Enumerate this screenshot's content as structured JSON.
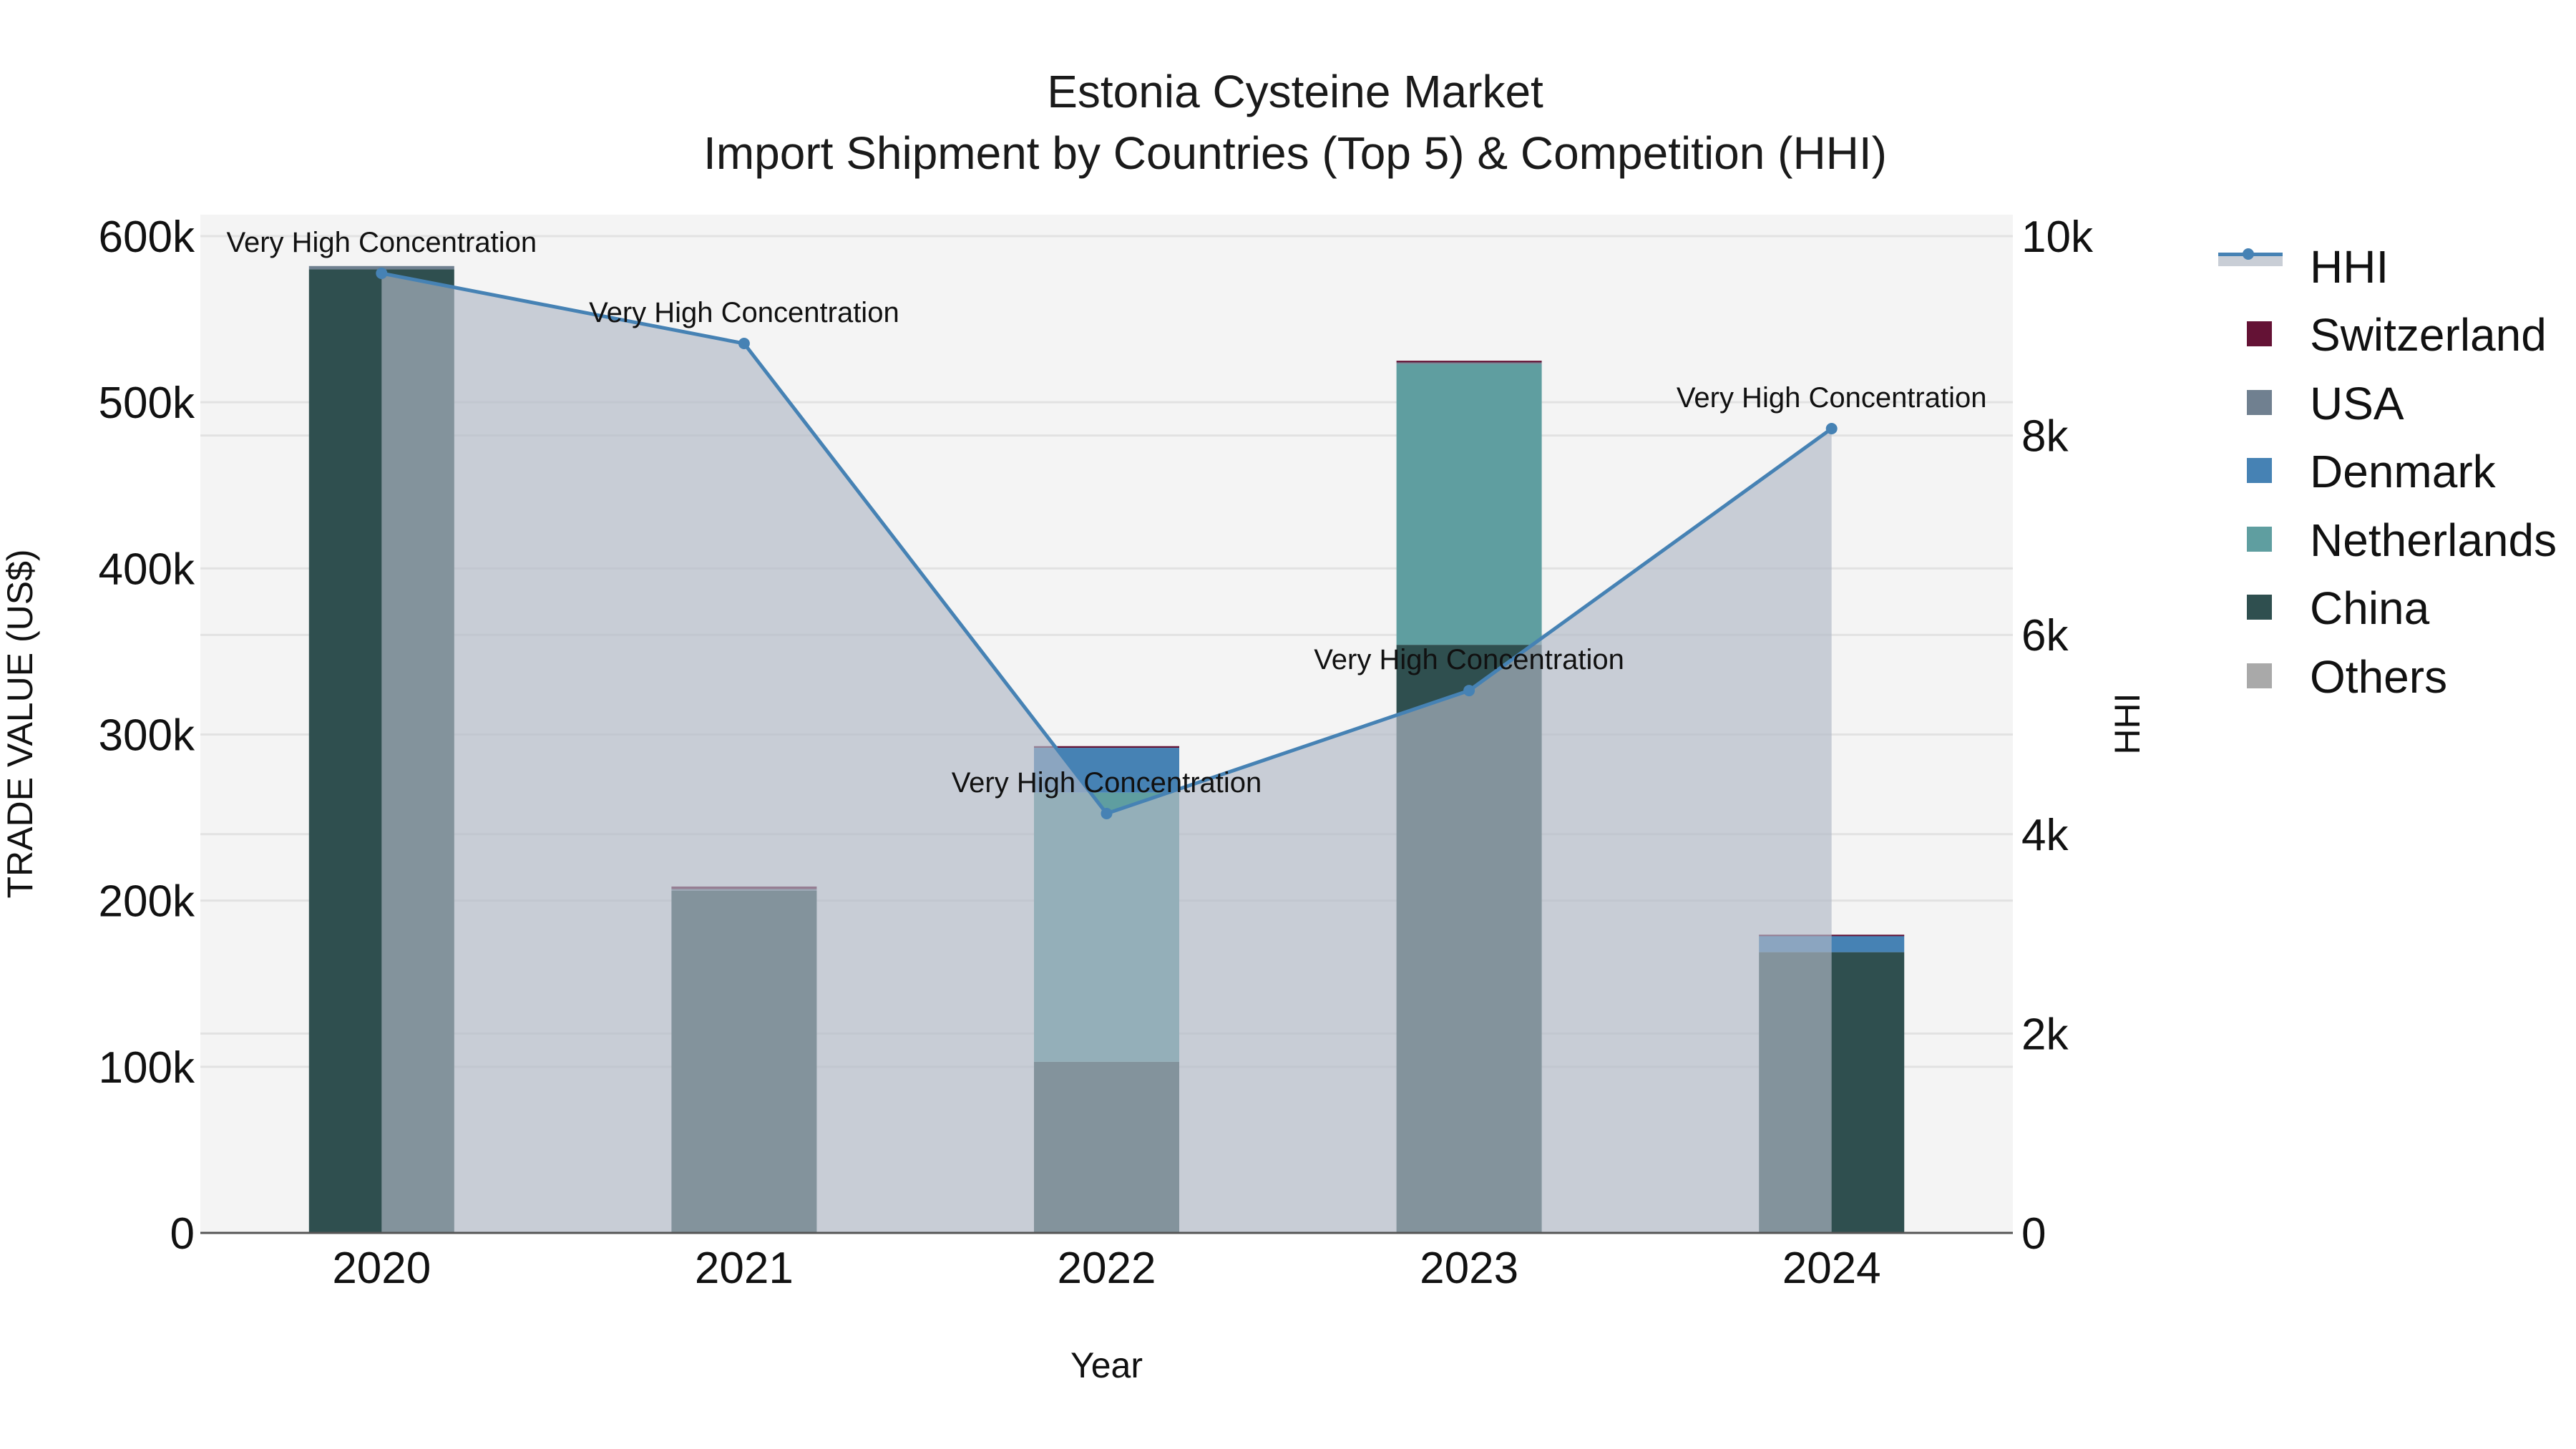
{
  "chart_data": {
    "type": "bar",
    "subtype": "stacked bar with line overlay (dual axis)",
    "title": "Estonia Cysteine Market",
    "subtitle": "Import Shipment by Countries (Top 5) & Competition (HHI)",
    "xlabel": "Year",
    "ylabel": "TRADE VALUE (US$)",
    "y2label": "HHI",
    "categories": [
      "2020",
      "2021",
      "2022",
      "2023",
      "2024"
    ],
    "ylim": [
      0,
      600000
    ],
    "y2lim": [
      0,
      10000
    ],
    "yticks": [
      0,
      100000,
      200000,
      300000,
      400000,
      500000,
      600000
    ],
    "ytick_labels": [
      "0",
      "100k",
      "200k",
      "300k",
      "400k",
      "500k",
      "600k"
    ],
    "y2ticks": [
      0,
      2000,
      4000,
      6000,
      8000,
      10000
    ],
    "y2tick_labels": [
      "0",
      "2k",
      "4k",
      "6k",
      "8k",
      "10k"
    ],
    "grid": true,
    "legend_position": "right",
    "series": [
      {
        "name": "Others",
        "color": "#a9a9a9",
        "values": [
          0,
          0,
          0,
          0,
          0
        ]
      },
      {
        "name": "China",
        "color": "#2f4f4f",
        "values": [
          580000,
          206000,
          103000,
          354000,
          169000
        ]
      },
      {
        "name": "Netherlands",
        "color": "#5f9ea0",
        "values": [
          0,
          0,
          162000,
          169000,
          0
        ]
      },
      {
        "name": "Denmark",
        "color": "#4682b4",
        "values": [
          0,
          0,
          27000,
          0,
          10000
        ]
      },
      {
        "name": "USA",
        "color": "#708090",
        "values": [
          2000,
          1000,
          0,
          1000,
          0
        ]
      },
      {
        "name": "Switzerland",
        "color": "#641235",
        "values": [
          0,
          1500,
          1000,
          1000,
          500
        ]
      }
    ],
    "line_series": {
      "name": "HHI",
      "axis": "y2",
      "color": "#4682b4",
      "fill_color": "rgba(176,184,198,0.65)",
      "values": [
        9627,
        8923,
        4207,
        5441,
        8069
      ],
      "annotations": [
        "Very High Concentration",
        "Very High Concentration",
        "Very High Concentration",
        "Very High Concentration",
        "Very High Concentration"
      ]
    }
  },
  "legend": {
    "items": [
      {
        "label": "HHI",
        "type": "line",
        "color": "#4682b4"
      },
      {
        "label": "Switzerland",
        "type": "box",
        "color": "#641235"
      },
      {
        "label": "USA",
        "type": "box",
        "color": "#708090"
      },
      {
        "label": "Denmark",
        "type": "box",
        "color": "#4682b4"
      },
      {
        "label": "Netherlands",
        "type": "box",
        "color": "#5f9ea0"
      },
      {
        "label": "China",
        "type": "box",
        "color": "#2f4f4f"
      },
      {
        "label": "Others",
        "type": "box",
        "color": "#a9a9a9"
      }
    ]
  },
  "colors": {
    "plot_bg": "#f4f4f4",
    "grid": "#e2e2e2",
    "axis_line": "#555555"
  }
}
